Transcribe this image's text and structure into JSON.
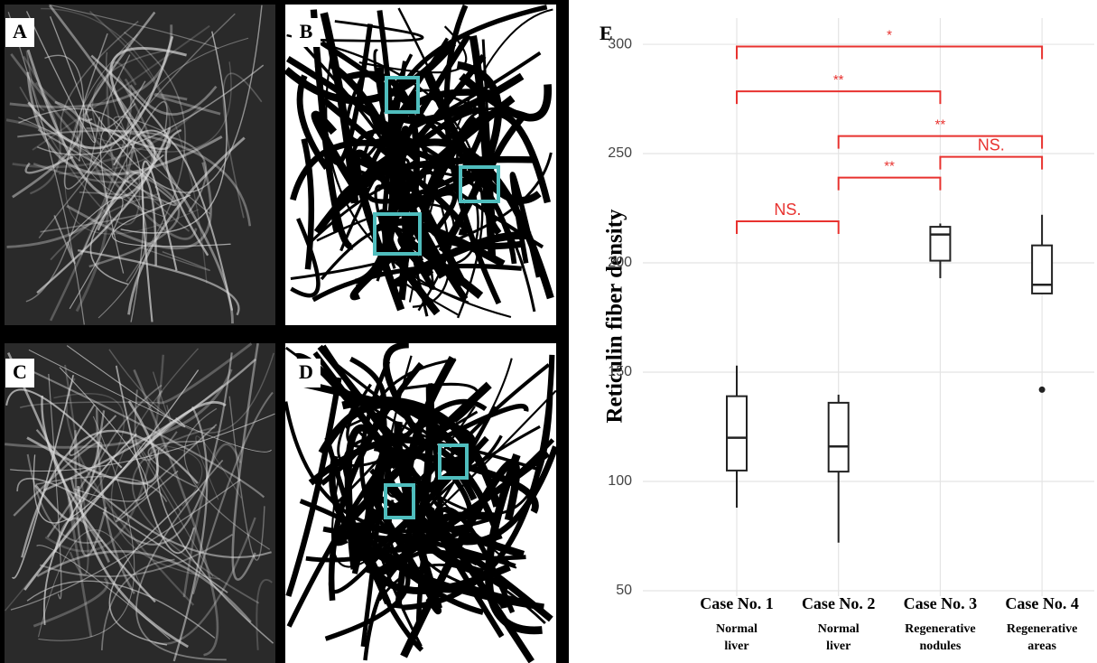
{
  "panels": [
    {
      "label": "A"
    },
    {
      "label": "B"
    },
    {
      "label": "C"
    },
    {
      "label": "D"
    }
  ],
  "chart_data": {
    "type": "box",
    "panel_label": "E",
    "y_label": "Reticulin fiber density",
    "categories": [
      "Case No. 1",
      "Case No. 2",
      "Case No. 3",
      "Case No. 4"
    ],
    "sublabels": [
      [
        "Normal",
        "liver"
      ],
      [
        "Normal",
        "liver"
      ],
      [
        "Regenerative",
        "nodules"
      ],
      [
        "Regenerative",
        "areas"
      ]
    ],
    "boxes": [
      {
        "min": 88,
        "q1": 105,
        "median": 120,
        "q3": 139,
        "max": 153,
        "outliers": []
      },
      {
        "min": 72,
        "q1": 104.5,
        "median": 116,
        "q3": 136,
        "max": 139.7,
        "outliers": []
      },
      {
        "min": 193,
        "q1": 201,
        "median": 213,
        "q3": 216.5,
        "max": 218,
        "outliers": []
      },
      {
        "min": 186,
        "q1": 186,
        "median": 190,
        "q3": 208,
        "max": 222,
        "outliers": [
          142
        ]
      }
    ],
    "color": "#222222",
    "ylim": [
      50,
      312
    ],
    "yticks": [
      50,
      100,
      150,
      200,
      250,
      300
    ],
    "grid": true,
    "brackets": [
      {
        "from": 0,
        "to": 3,
        "y": 299,
        "label": "*"
      },
      {
        "from": 0,
        "to": 2,
        "y": 278.5,
        "label": "**"
      },
      {
        "from": 1,
        "to": 3,
        "y": 258,
        "label": "**"
      },
      {
        "from": 2,
        "to": 3,
        "y": 248.5,
        "label": "NS."
      },
      {
        "from": 1,
        "to": 2,
        "y": 239,
        "label": "**"
      },
      {
        "from": 0,
        "to": 1,
        "y": 219,
        "label": "NS."
      }
    ],
    "bracket_color": "#e8322f"
  }
}
